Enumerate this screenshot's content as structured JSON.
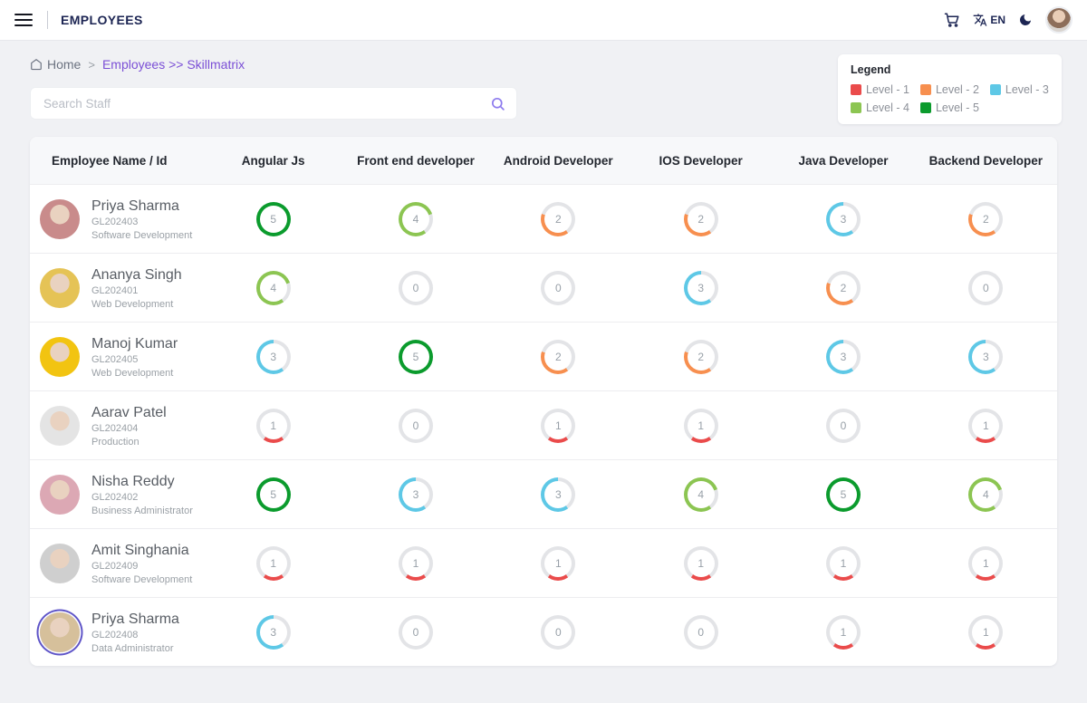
{
  "topbar": {
    "title": "EMPLOYEES",
    "language": "EN",
    "icons": [
      "hamburger-menu-icon",
      "cart-icon",
      "translate-icon",
      "moon-icon",
      "user-avatar"
    ]
  },
  "breadcrumb": {
    "home": "Home",
    "separator": ">",
    "current": "Employees >> Skillmatrix"
  },
  "search": {
    "placeholder": "Search Staff"
  },
  "legend": {
    "title": "Legend",
    "items": [
      {
        "label": "Level - 1",
        "color": "#EA4B4B"
      },
      {
        "label": "Level - 2",
        "color": "#F78F4F"
      },
      {
        "label": "Level - 3",
        "color": "#5EC8E6"
      },
      {
        "label": "Level - 4",
        "color": "#8CC552"
      },
      {
        "label": "Level - 5",
        "color": "#0B9B2D"
      }
    ]
  },
  "table": {
    "columns": [
      "Employee Name / Id",
      "Angular Js",
      "Front end developer",
      "Android Developer",
      "IOS Developer",
      "Java Developer",
      "Backend Developer"
    ],
    "max_level": 5,
    "track_color": "#e3e4e7",
    "level_colors": {
      "1": "#EA4B4B",
      "2": "#F78F4F",
      "3": "#5EC8E6",
      "4": "#8CC552",
      "5": "#0B9B2D"
    },
    "employees": [
      {
        "name": "Priya Sharma",
        "id": "GL202403",
        "department": "Software Development",
        "avatar_color": "#c98b8b",
        "avatar_ring": false,
        "levels": [
          5,
          4,
          2,
          2,
          3,
          2
        ]
      },
      {
        "name": "Ananya Singh",
        "id": "GL202401",
        "department": "Web Development",
        "avatar_color": "#e5c356",
        "avatar_ring": false,
        "levels": [
          4,
          0,
          0,
          3,
          2,
          0
        ]
      },
      {
        "name": "Manoj Kumar",
        "id": "GL202405",
        "department": "Web Development",
        "avatar_color": "#f2c411",
        "avatar_ring": false,
        "levels": [
          3,
          5,
          2,
          2,
          3,
          3
        ]
      },
      {
        "name": "Aarav Patel",
        "id": "GL202404",
        "department": "Production",
        "avatar_color": "#e4e4e4",
        "avatar_ring": false,
        "levels": [
          1,
          0,
          1,
          1,
          0,
          1
        ]
      },
      {
        "name": "Nisha Reddy",
        "id": "GL202402",
        "department": "Business Administrator",
        "avatar_color": "#dca8b4",
        "avatar_ring": false,
        "levels": [
          5,
          3,
          3,
          4,
          5,
          4
        ]
      },
      {
        "name": "Amit Singhania",
        "id": "GL202409",
        "department": "Software Development",
        "avatar_color": "#cfcfcf",
        "avatar_ring": false,
        "levels": [
          1,
          1,
          1,
          1,
          1,
          1
        ]
      },
      {
        "name": "Priya Sharma",
        "id": "GL202408",
        "department": "Data Administrator",
        "avatar_color": "#d6c09b",
        "avatar_ring": true,
        "levels": [
          3,
          0,
          0,
          0,
          1,
          1
        ]
      }
    ]
  }
}
